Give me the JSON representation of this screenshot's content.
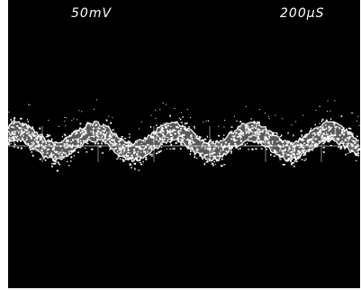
{
  "screen": {
    "volts_per_div": "50mV",
    "time_per_div": "200μS"
  },
  "colors": {
    "background": "#000000",
    "trace": "#ffffff",
    "frame": "#ffffff"
  },
  "trace": {
    "waveform": "noisy-sine",
    "cycles_visible": 4.5
  }
}
